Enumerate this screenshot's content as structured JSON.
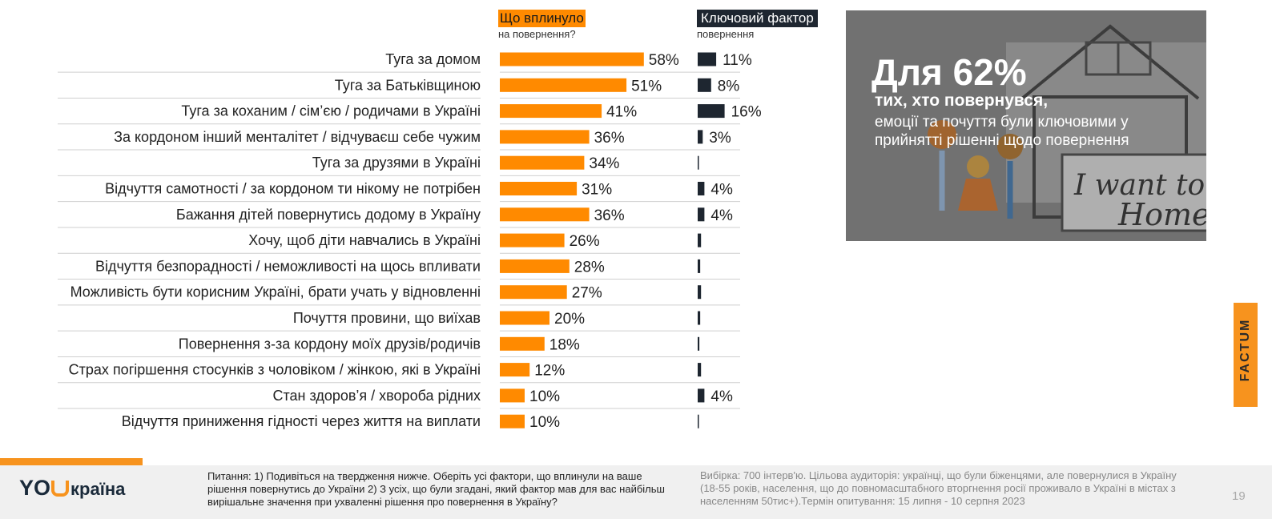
{
  "header": {
    "left_title": "Що вплинуло",
    "left_sub": "на повернення?",
    "right_title": "Ключовий фактор",
    "right_sub": "повернення"
  },
  "chart_data": {
    "type": "bar",
    "categories": [
      "Туга за домом",
      "Туга за Батьківщиною",
      "Туга за коханим / сім’єю / родичами в Україні",
      "За кордоном інший менталітет / відчуваєш себе чужим",
      "Туга за друзями в Україні",
      "Відчуття самотності / за кордоном ти нікому не потрібен",
      "Бажання дітей повернутись додому в Україну",
      "Хочу, щоб діти навчались в Україні",
      "Відчуття безпорадності / неможливості на щось впливати",
      "Можливість бути корисним Україні, брати учать у відновленні",
      "Почуття провини, що виїхав",
      "Повернення з-за кордону моїх друзів/родичів",
      "Страх погіршення стосунків з чоловіком / жінкою, які в Україні",
      "Стан здоров’я / хвороба рідних",
      "Відчуття приниження гідності через життя на виплати"
    ],
    "series": [
      {
        "name": "Що вплинуло на повернення?",
        "color": "#ff8a00",
        "values": [
          58,
          51,
          41,
          36,
          34,
          31,
          36,
          26,
          28,
          27,
          20,
          18,
          12,
          10,
          10
        ],
        "labels": [
          "58%",
          "51%",
          "41%",
          "36%",
          "34%",
          "31%",
          "36%",
          "26%",
          "28%",
          "27%",
          "20%",
          "18%",
          "12%",
          "10%",
          "10%"
        ]
      },
      {
        "name": "Ключовий фактор повернення",
        "color": "#1e2630",
        "values": [
          11,
          8,
          16,
          3,
          0.5,
          4,
          4,
          2,
          1.5,
          2,
          1.5,
          1,
          2,
          4,
          0.5
        ],
        "labels": [
          "11%",
          "8%",
          "16%",
          "3%",
          "",
          "4%",
          "4%",
          "",
          "",
          "",
          "",
          "",
          "",
          "4%",
          ""
        ]
      }
    ]
  },
  "panel": {
    "big": "Для 62%",
    "line2": "тих, хто повернувся,",
    "line3": "емоції та почуття були ключовими у прийнятті рішенні щодо повернення",
    "drawing_text_1": "I want to",
    "drawing_text_2": "Home"
  },
  "brand": {
    "factum": "FACTUM",
    "logo_you": "YO",
    "logo_ukraina": "країна"
  },
  "footer": {
    "question": "Питання: 1) Подивіться на твердження нижче. Оберіть усі фактори, що вплинули на ваше рішення повернутись до України 2) З усіх, що були згадані, який фактор мав для вас найбільш вирішальне значення при ухваленні рішення про повернення в Україну?",
    "note": "Вибірка: 700 інтерв'ю. Цільова аудиторія: українці, що були біженцями, але повернулися в Україну (18-55 років, населення, що до повномасштабного вторгнення росії проживало в Україні в містах з населенням 50тис+).Термін опитування: 15 липня - 10 серпня 2023",
    "page": "19"
  }
}
